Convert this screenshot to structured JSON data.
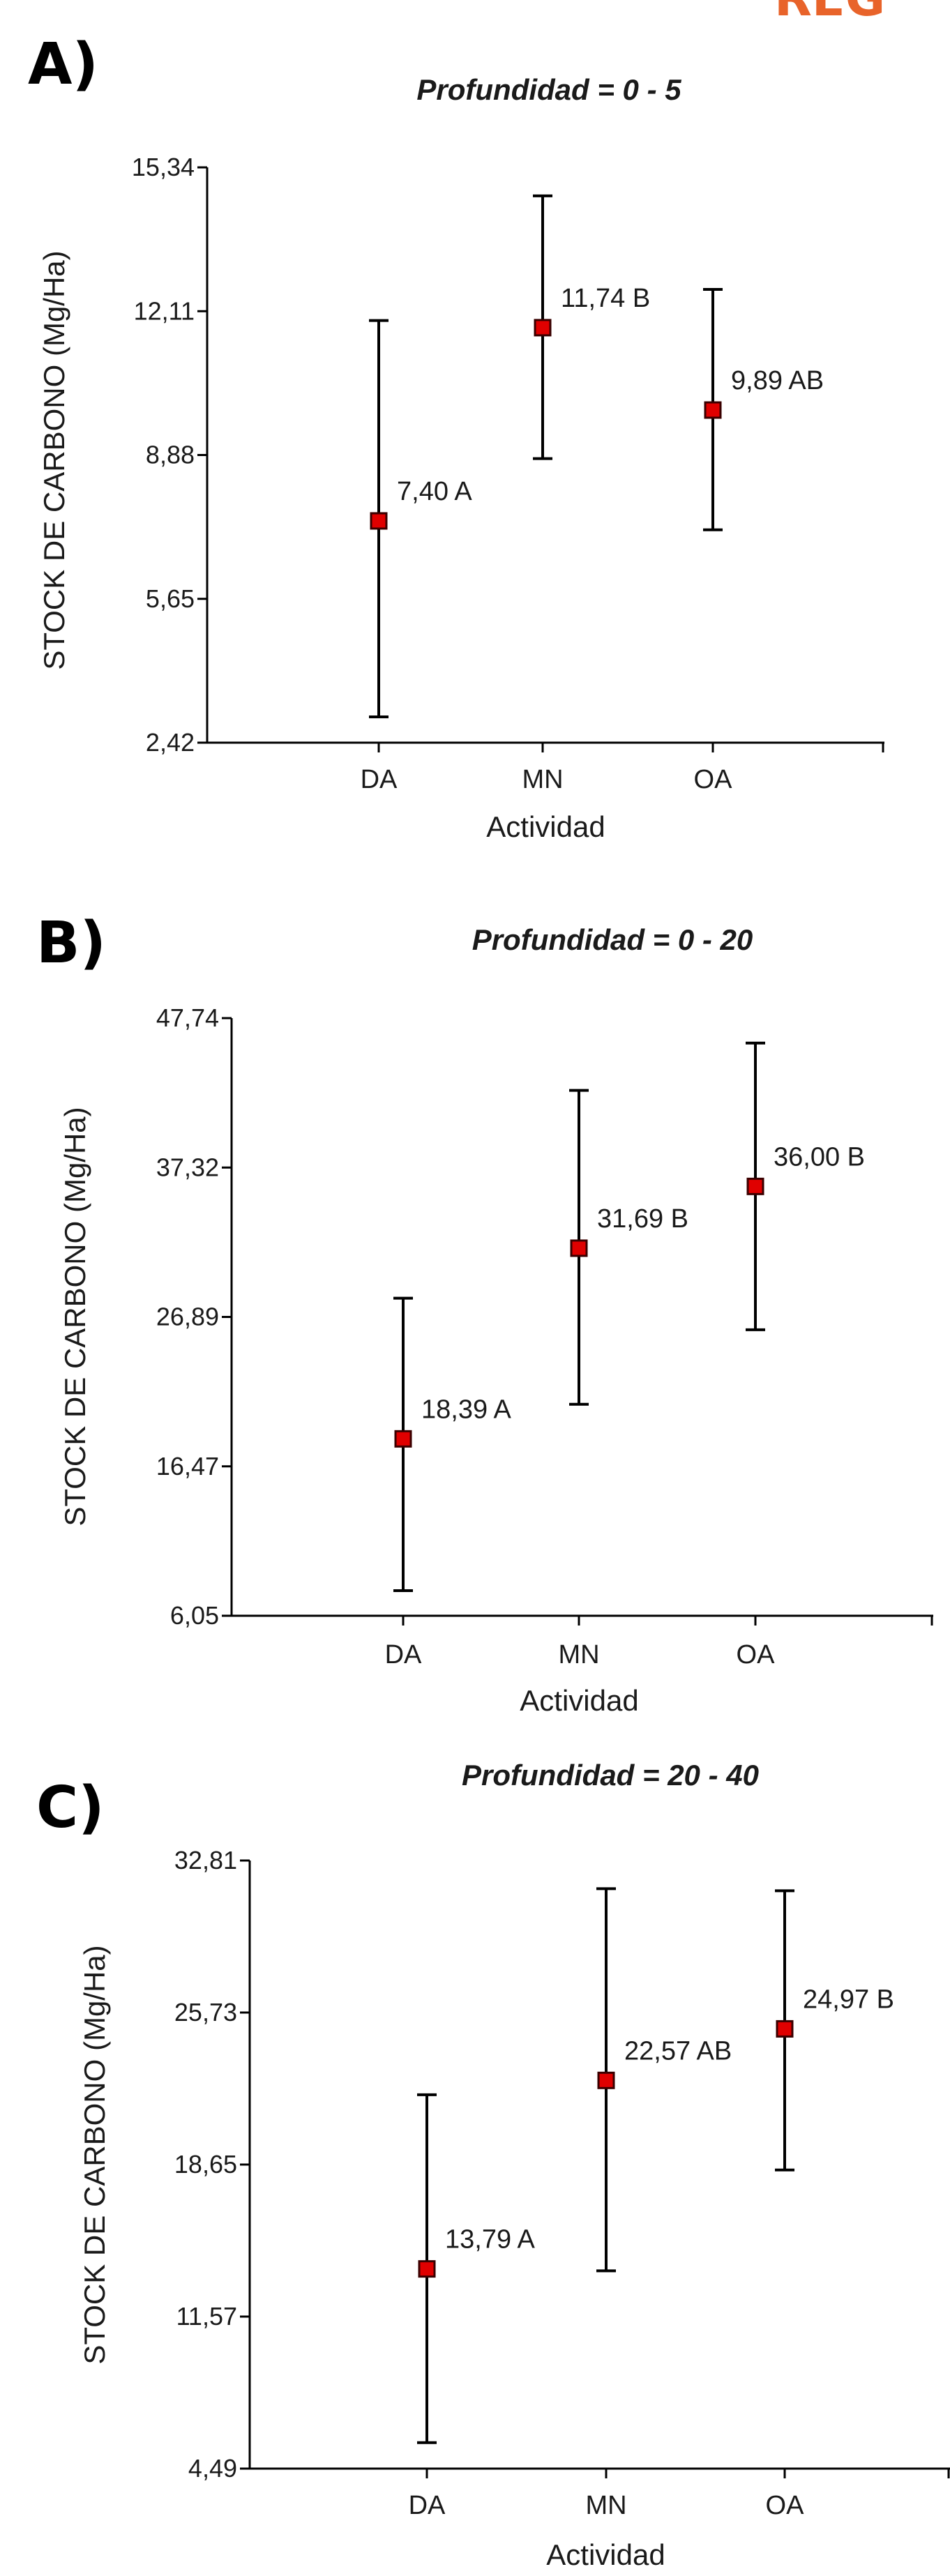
{
  "corner_text": "REG",
  "colors": {
    "marker_fill": "#e00000",
    "marker_stroke": "#3a0000",
    "axis": "#000000",
    "corner_text": "#e8632a"
  },
  "chart_data": [
    {
      "type": "scatter",
      "panel_label": "A)",
      "title": "Profundidad = 0 - 5",
      "xlabel": "Actividad",
      "ylabel": "STOCK DE CARBONO (Mg/Ha)",
      "categories": [
        "DA",
        "MN",
        "OA"
      ],
      "yticks": [
        "2,42",
        "5,65",
        "8,88",
        "12,11",
        "15,34"
      ],
      "ylim": [
        2.42,
        15.34
      ],
      "points": [
        {
          "category": "DA",
          "value": 7.4,
          "low": 3.0,
          "high": 11.9,
          "label": "7,40 A"
        },
        {
          "category": "MN",
          "value": 11.74,
          "low": 8.8,
          "high": 14.7,
          "label": "11,74 B"
        },
        {
          "category": "OA",
          "value": 9.89,
          "low": 7.2,
          "high": 12.6,
          "label": "9,89 AB"
        }
      ],
      "grid": false
    },
    {
      "type": "scatter",
      "panel_label": "B)",
      "title": "Profundidad = 0 - 20",
      "xlabel": "Actividad",
      "ylabel": "STOCK DE CARBONO (Mg/Ha)",
      "categories": [
        "DA",
        "MN",
        "OA"
      ],
      "yticks": [
        "6,05",
        "16,47",
        "26,89",
        "37,32",
        "47,74"
      ],
      "ylim": [
        6.05,
        47.74
      ],
      "points": [
        {
          "category": "DA",
          "value": 18.39,
          "low": 7.8,
          "high": 28.2,
          "label": "18,39 A"
        },
        {
          "category": "MN",
          "value": 31.69,
          "low": 20.8,
          "high": 42.7,
          "label": "31,69 B"
        },
        {
          "category": "OA",
          "value": 36.0,
          "low": 26.0,
          "high": 46.0,
          "label": "36,00 B"
        }
      ],
      "grid": false
    },
    {
      "type": "scatter",
      "panel_label": "C)",
      "title": "Profundidad = 20 - 40",
      "xlabel": "Actividad",
      "ylabel": "STOCK DE CARBONO (Mg/Ha)",
      "categories": [
        "DA",
        "MN",
        "OA"
      ],
      "yticks": [
        "4,49",
        "11,57",
        "18,65",
        "25,73",
        "32,81"
      ],
      "ylim": [
        4.49,
        32.81
      ],
      "points": [
        {
          "category": "DA",
          "value": 13.79,
          "low": 5.7,
          "high": 21.9,
          "label": "13,79 A"
        },
        {
          "category": "MN",
          "value": 22.57,
          "low": 13.7,
          "high": 31.5,
          "label": "22,57 AB"
        },
        {
          "category": "OA",
          "value": 24.97,
          "low": 18.4,
          "high": 31.4,
          "label": "24,97 B"
        }
      ],
      "grid": false
    }
  ]
}
